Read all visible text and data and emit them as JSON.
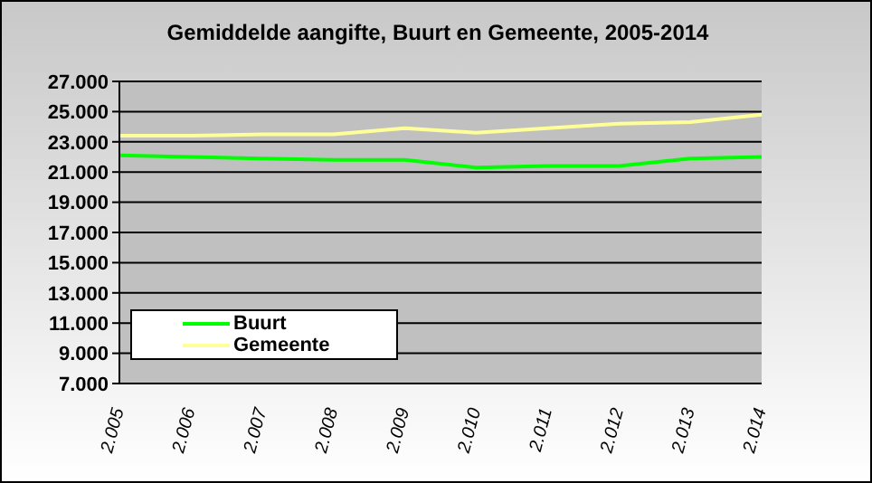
{
  "chart_data": {
    "type": "line",
    "title": "Gemiddelde aangifte, Buurt en Gemeente, 2005-2014",
    "categories": [
      "2.005",
      "2.006",
      "2.007",
      "2.008",
      "2.009",
      "2.010",
      "2.011",
      "2.012",
      "2.013",
      "2.014"
    ],
    "series": [
      {
        "name": "Buurt",
        "color": "#00ff00",
        "values": [
          22100,
          22000,
          21900,
          21800,
          21800,
          21300,
          21400,
          21400,
          21900,
          22000
        ]
      },
      {
        "name": "Gemeente",
        "color": "#ffff99",
        "values": [
          23400,
          23400,
          23500,
          23500,
          23900,
          23600,
          23900,
          24200,
          24300,
          24800
        ]
      }
    ],
    "ylim": [
      7000,
      27000
    ],
    "yticks": [
      {
        "value": 7000,
        "label": "7.000"
      },
      {
        "value": 9000,
        "label": "9.000"
      },
      {
        "value": 11000,
        "label": "11.000"
      },
      {
        "value": 13000,
        "label": "13.000"
      },
      {
        "value": 15000,
        "label": "15.000"
      },
      {
        "value": 17000,
        "label": "17.000"
      },
      {
        "value": 19000,
        "label": "19.000"
      },
      {
        "value": 21000,
        "label": "21.000"
      },
      {
        "value": 23000,
        "label": "23.000"
      },
      {
        "value": 25000,
        "label": "25.000"
      },
      {
        "value": 27000,
        "label": "27.000"
      }
    ],
    "grid": "y",
    "legend": "bottom left",
    "marker": "none",
    "line_style": "solid"
  }
}
